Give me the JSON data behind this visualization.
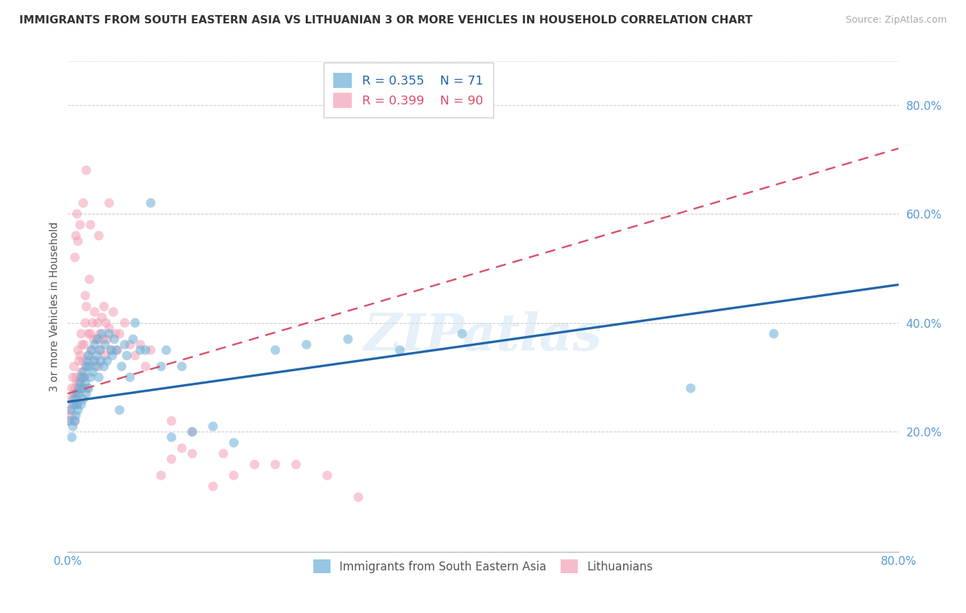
{
  "title": "IMMIGRANTS FROM SOUTH EASTERN ASIA VS LITHUANIAN 3 OR MORE VEHICLES IN HOUSEHOLD CORRELATION CHART",
  "source": "Source: ZipAtlas.com",
  "ylabel": "3 or more Vehicles in Household",
  "xlim": [
    0.0,
    0.8
  ],
  "ylim": [
    -0.02,
    0.88
  ],
  "x_ticks": [
    0.0,
    0.1,
    0.2,
    0.3,
    0.4,
    0.5,
    0.6,
    0.7,
    0.8
  ],
  "x_tick_labels": [
    "0.0%",
    "",
    "",
    "",
    "",
    "",
    "",
    "",
    "80.0%"
  ],
  "y_ticks_right": [
    0.2,
    0.4,
    0.6,
    0.8
  ],
  "y_tick_labels_right": [
    "20.0%",
    "40.0%",
    "60.0%",
    "80.0%"
  ],
  "blue_color": "#6baed6",
  "pink_color": "#f4a0b5",
  "blue_line_color": "#2166ac",
  "pink_line_color": "#d94f6a",
  "legend_label_blue": "Immigrants from South Eastern Asia",
  "legend_label_pink": "Lithuanians",
  "r_blue": 0.355,
  "n_blue": 71,
  "r_pink": 0.399,
  "n_pink": 90,
  "watermark": "ZIPatlas",
  "blue_line_x0": 0.0,
  "blue_line_y0": 0.255,
  "blue_line_x1": 0.8,
  "blue_line_y1": 0.47,
  "pink_line_x0": 0.0,
  "pink_line_y0": 0.27,
  "pink_line_x1": 0.8,
  "pink_line_y1": 0.72,
  "blue_scatter_x": [
    0.002,
    0.003,
    0.004,
    0.005,
    0.006,
    0.006,
    0.007,
    0.008,
    0.008,
    0.009,
    0.01,
    0.01,
    0.011,
    0.012,
    0.013,
    0.013,
    0.014,
    0.015,
    0.015,
    0.016,
    0.017,
    0.018,
    0.018,
    0.019,
    0.02,
    0.02,
    0.021,
    0.022,
    0.023,
    0.024,
    0.025,
    0.026,
    0.027,
    0.028,
    0.029,
    0.03,
    0.031,
    0.032,
    0.033,
    0.035,
    0.036,
    0.038,
    0.04,
    0.042,
    0.043,
    0.045,
    0.047,
    0.05,
    0.052,
    0.055,
    0.057,
    0.06,
    0.063,
    0.065,
    0.07,
    0.075,
    0.08,
    0.09,
    0.095,
    0.1,
    0.11,
    0.12,
    0.14,
    0.16,
    0.2,
    0.23,
    0.27,
    0.32,
    0.38,
    0.6,
    0.68
  ],
  "blue_scatter_y": [
    0.22,
    0.24,
    0.19,
    0.21,
    0.25,
    0.26,
    0.22,
    0.27,
    0.23,
    0.25,
    0.27,
    0.24,
    0.28,
    0.29,
    0.25,
    0.3,
    0.28,
    0.31,
    0.26,
    0.3,
    0.29,
    0.32,
    0.27,
    0.33,
    0.28,
    0.34,
    0.32,
    0.3,
    0.35,
    0.31,
    0.33,
    0.36,
    0.32,
    0.34,
    0.37,
    0.3,
    0.35,
    0.33,
    0.38,
    0.32,
    0.36,
    0.33,
    0.38,
    0.35,
    0.34,
    0.37,
    0.35,
    0.24,
    0.32,
    0.36,
    0.34,
    0.3,
    0.37,
    0.4,
    0.35,
    0.35,
    0.62,
    0.32,
    0.35,
    0.19,
    0.32,
    0.2,
    0.21,
    0.18,
    0.35,
    0.36,
    0.37,
    0.35,
    0.38,
    0.28,
    0.38
  ],
  "pink_scatter_x": [
    0.001,
    0.002,
    0.003,
    0.004,
    0.004,
    0.005,
    0.005,
    0.006,
    0.006,
    0.007,
    0.007,
    0.008,
    0.008,
    0.009,
    0.009,
    0.01,
    0.01,
    0.011,
    0.011,
    0.012,
    0.012,
    0.013,
    0.013,
    0.014,
    0.014,
    0.015,
    0.015,
    0.016,
    0.016,
    0.017,
    0.017,
    0.018,
    0.018,
    0.019,
    0.02,
    0.02,
    0.021,
    0.022,
    0.023,
    0.024,
    0.025,
    0.026,
    0.027,
    0.028,
    0.029,
    0.03,
    0.031,
    0.032,
    0.033,
    0.034,
    0.035,
    0.036,
    0.037,
    0.038,
    0.04,
    0.042,
    0.044,
    0.046,
    0.048,
    0.05,
    0.055,
    0.06,
    0.065,
    0.07,
    0.075,
    0.08,
    0.09,
    0.1,
    0.11,
    0.12,
    0.14,
    0.16,
    0.2,
    0.1,
    0.12,
    0.15,
    0.18,
    0.22,
    0.25,
    0.28,
    0.007,
    0.008,
    0.009,
    0.01,
    0.012,
    0.015,
    0.018,
    0.022,
    0.03,
    0.04
  ],
  "pink_scatter_y": [
    0.22,
    0.24,
    0.26,
    0.23,
    0.28,
    0.25,
    0.3,
    0.27,
    0.32,
    0.22,
    0.28,
    0.26,
    0.3,
    0.25,
    0.29,
    0.28,
    0.35,
    0.27,
    0.33,
    0.29,
    0.34,
    0.31,
    0.38,
    0.3,
    0.36,
    0.28,
    0.33,
    0.3,
    0.36,
    0.4,
    0.45,
    0.32,
    0.43,
    0.28,
    0.34,
    0.38,
    0.48,
    0.38,
    0.35,
    0.4,
    0.37,
    0.42,
    0.33,
    0.37,
    0.4,
    0.32,
    0.38,
    0.35,
    0.41,
    0.37,
    0.43,
    0.34,
    0.4,
    0.37,
    0.39,
    0.35,
    0.42,
    0.38,
    0.35,
    0.38,
    0.4,
    0.36,
    0.34,
    0.36,
    0.32,
    0.35,
    0.12,
    0.15,
    0.17,
    0.16,
    0.1,
    0.12,
    0.14,
    0.22,
    0.2,
    0.16,
    0.14,
    0.14,
    0.12,
    0.08,
    0.52,
    0.56,
    0.6,
    0.55,
    0.58,
    0.62,
    0.68,
    0.58,
    0.56,
    0.62
  ]
}
